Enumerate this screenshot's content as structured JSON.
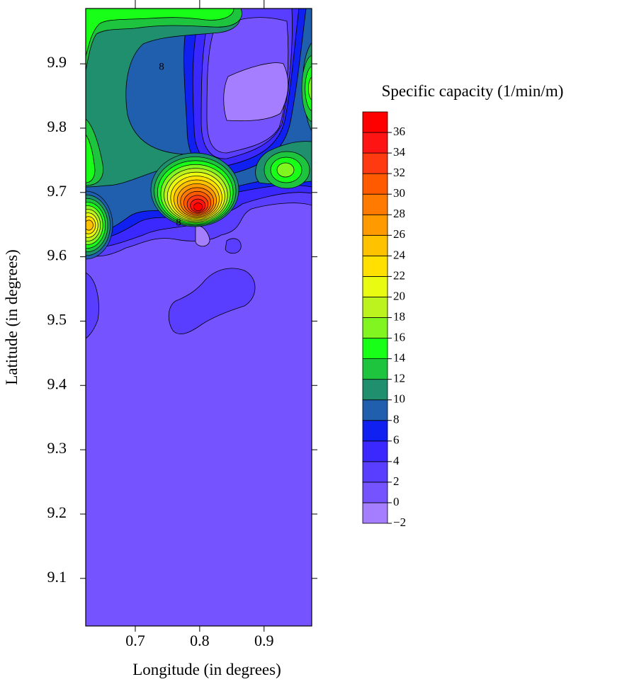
{
  "chart_data": {
    "type": "contour",
    "xlabel": "Longitude (in degrees)",
    "ylabel": "Latitude (in degrees)",
    "xlim": [
      0.623,
      0.974
    ],
    "ylim": [
      9.026,
      9.986
    ],
    "xticks": [
      0.7,
      0.8,
      0.9
    ],
    "yticks": [
      9.1,
      9.2,
      9.3,
      9.4,
      9.5,
      9.6,
      9.7,
      9.8,
      9.9
    ],
    "colorbar": {
      "title": "Specific capacity (1/min/m)",
      "levels": [
        -2,
        0,
        2,
        4,
        6,
        8,
        10,
        12,
        14,
        16,
        18,
        20,
        22,
        24,
        26,
        28,
        30,
        32,
        34,
        36,
        38
      ],
      "ticks": [
        {
          "value": -2,
          "label": "−2"
        },
        0,
        2,
        4,
        6,
        8,
        10,
        12,
        14,
        16,
        18,
        20,
        22,
        24,
        26,
        28,
        30,
        32,
        34,
        36
      ],
      "colors": [
        "#a47eff",
        "#7554ff",
        "#5a3eff",
        "#3a28ff",
        "#1020f0",
        "#1f5fae",
        "#1f8f6e",
        "#1ec43e",
        "#18ff18",
        "#80f520",
        "#bcf21e",
        "#e8fb10",
        "#ffe000",
        "#ffc200",
        "#ff9a00",
        "#ff7a00",
        "#ff5a00",
        "#ff3a10",
        "#ff1414",
        "#ff0000"
      ]
    },
    "contour_labels": [
      8,
      8
    ]
  }
}
